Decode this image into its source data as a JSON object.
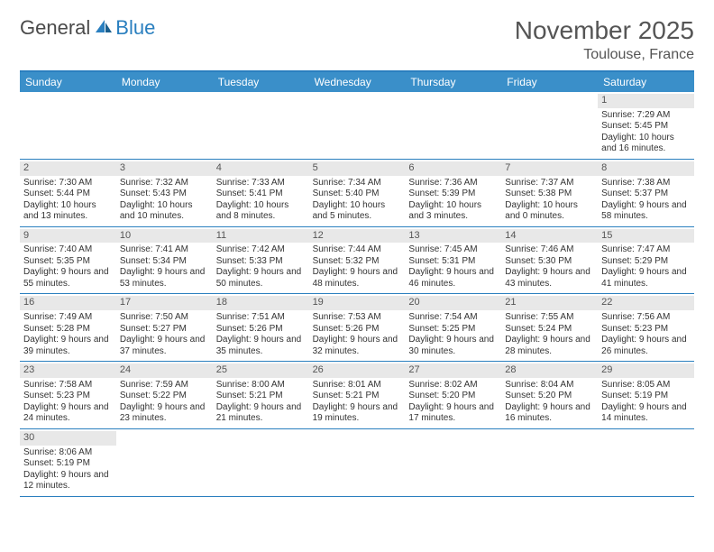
{
  "logo": {
    "text1": "General",
    "text2": "Blue"
  },
  "title": "November 2025",
  "location": "Toulouse, France",
  "colors": {
    "header_bg": "#3a8fc9",
    "border": "#2a7fbf",
    "daynum_bg": "#e8e8e8",
    "text": "#333333"
  },
  "day_names": [
    "Sunday",
    "Monday",
    "Tuesday",
    "Wednesday",
    "Thursday",
    "Friday",
    "Saturday"
  ],
  "weeks": [
    [
      null,
      null,
      null,
      null,
      null,
      null,
      {
        "n": "1",
        "sr": "7:29 AM",
        "ss": "5:45 PM",
        "dl": "10 hours and 16 minutes."
      }
    ],
    [
      {
        "n": "2",
        "sr": "7:30 AM",
        "ss": "5:44 PM",
        "dl": "10 hours and 13 minutes."
      },
      {
        "n": "3",
        "sr": "7:32 AM",
        "ss": "5:43 PM",
        "dl": "10 hours and 10 minutes."
      },
      {
        "n": "4",
        "sr": "7:33 AM",
        "ss": "5:41 PM",
        "dl": "10 hours and 8 minutes."
      },
      {
        "n": "5",
        "sr": "7:34 AM",
        "ss": "5:40 PM",
        "dl": "10 hours and 5 minutes."
      },
      {
        "n": "6",
        "sr": "7:36 AM",
        "ss": "5:39 PM",
        "dl": "10 hours and 3 minutes."
      },
      {
        "n": "7",
        "sr": "7:37 AM",
        "ss": "5:38 PM",
        "dl": "10 hours and 0 minutes."
      },
      {
        "n": "8",
        "sr": "7:38 AM",
        "ss": "5:37 PM",
        "dl": "9 hours and 58 minutes."
      }
    ],
    [
      {
        "n": "9",
        "sr": "7:40 AM",
        "ss": "5:35 PM",
        "dl": "9 hours and 55 minutes."
      },
      {
        "n": "10",
        "sr": "7:41 AM",
        "ss": "5:34 PM",
        "dl": "9 hours and 53 minutes."
      },
      {
        "n": "11",
        "sr": "7:42 AM",
        "ss": "5:33 PM",
        "dl": "9 hours and 50 minutes."
      },
      {
        "n": "12",
        "sr": "7:44 AM",
        "ss": "5:32 PM",
        "dl": "9 hours and 48 minutes."
      },
      {
        "n": "13",
        "sr": "7:45 AM",
        "ss": "5:31 PM",
        "dl": "9 hours and 46 minutes."
      },
      {
        "n": "14",
        "sr": "7:46 AM",
        "ss": "5:30 PM",
        "dl": "9 hours and 43 minutes."
      },
      {
        "n": "15",
        "sr": "7:47 AM",
        "ss": "5:29 PM",
        "dl": "9 hours and 41 minutes."
      }
    ],
    [
      {
        "n": "16",
        "sr": "7:49 AM",
        "ss": "5:28 PM",
        "dl": "9 hours and 39 minutes."
      },
      {
        "n": "17",
        "sr": "7:50 AM",
        "ss": "5:27 PM",
        "dl": "9 hours and 37 minutes."
      },
      {
        "n": "18",
        "sr": "7:51 AM",
        "ss": "5:26 PM",
        "dl": "9 hours and 35 minutes."
      },
      {
        "n": "19",
        "sr": "7:53 AM",
        "ss": "5:26 PM",
        "dl": "9 hours and 32 minutes."
      },
      {
        "n": "20",
        "sr": "7:54 AM",
        "ss": "5:25 PM",
        "dl": "9 hours and 30 minutes."
      },
      {
        "n": "21",
        "sr": "7:55 AM",
        "ss": "5:24 PM",
        "dl": "9 hours and 28 minutes."
      },
      {
        "n": "22",
        "sr": "7:56 AM",
        "ss": "5:23 PM",
        "dl": "9 hours and 26 minutes."
      }
    ],
    [
      {
        "n": "23",
        "sr": "7:58 AM",
        "ss": "5:23 PM",
        "dl": "9 hours and 24 minutes."
      },
      {
        "n": "24",
        "sr": "7:59 AM",
        "ss": "5:22 PM",
        "dl": "9 hours and 23 minutes."
      },
      {
        "n": "25",
        "sr": "8:00 AM",
        "ss": "5:21 PM",
        "dl": "9 hours and 21 minutes."
      },
      {
        "n": "26",
        "sr": "8:01 AM",
        "ss": "5:21 PM",
        "dl": "9 hours and 19 minutes."
      },
      {
        "n": "27",
        "sr": "8:02 AM",
        "ss": "5:20 PM",
        "dl": "9 hours and 17 minutes."
      },
      {
        "n": "28",
        "sr": "8:04 AM",
        "ss": "5:20 PM",
        "dl": "9 hours and 16 minutes."
      },
      {
        "n": "29",
        "sr": "8:05 AM",
        "ss": "5:19 PM",
        "dl": "9 hours and 14 minutes."
      }
    ],
    [
      {
        "n": "30",
        "sr": "8:06 AM",
        "ss": "5:19 PM",
        "dl": "9 hours and 12 minutes."
      },
      null,
      null,
      null,
      null,
      null,
      null
    ]
  ],
  "labels": {
    "sunrise": "Sunrise:",
    "sunset": "Sunset:",
    "daylight": "Daylight:"
  }
}
